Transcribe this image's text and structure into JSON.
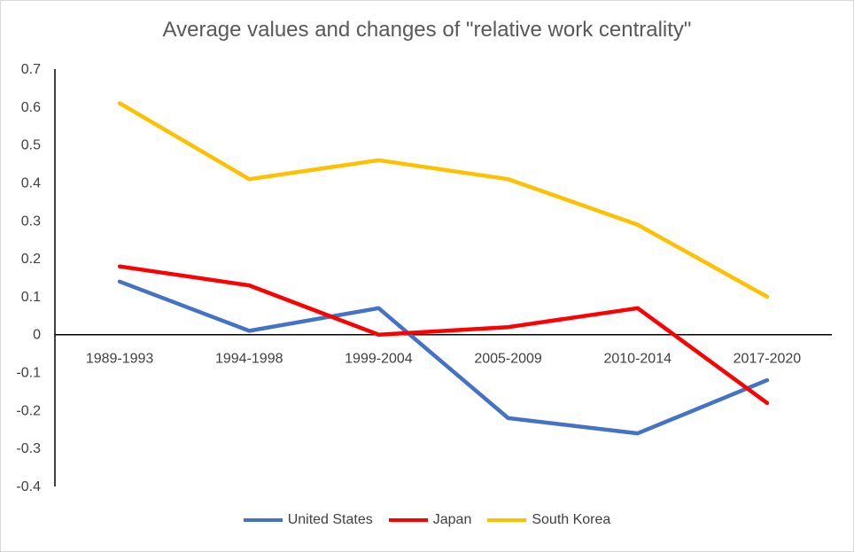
{
  "chart_data": {
    "type": "line",
    "title": "Average values and changes of \"relative work centrality\"",
    "xlabel": "",
    "ylabel": "",
    "categories": [
      "1989-1993",
      "1994-1998",
      "1999-2004",
      "2005-2009",
      "2010-2014",
      "2017-2020"
    ],
    "ylim": [
      -0.4,
      0.7
    ],
    "yticks": [
      "0.7",
      "0.6",
      "0.5",
      "0.4",
      "0.3",
      "0.2",
      "0.1",
      "0",
      "-0.1",
      "-0.2",
      "-0.3",
      "-0.4"
    ],
    "grid": false,
    "legend_position": "bottom",
    "series": [
      {
        "name": "United States",
        "color": "#4472c4",
        "values": [
          0.14,
          0.01,
          0.07,
          -0.22,
          -0.26,
          -0.12
        ]
      },
      {
        "name": "Japan",
        "color": "#ff0000",
        "values": [
          0.18,
          0.13,
          0.0,
          0.02,
          0.07,
          -0.18
        ]
      },
      {
        "name": "South Korea",
        "color": "#ffc000",
        "values": [
          0.61,
          0.41,
          0.46,
          0.41,
          0.29,
          0.1
        ]
      }
    ]
  }
}
